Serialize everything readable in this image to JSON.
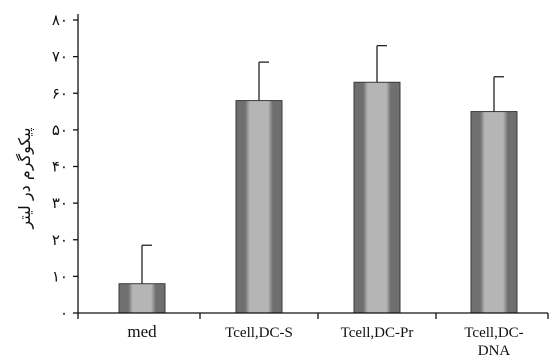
{
  "chart_data": {
    "type": "bar",
    "ylabel": "پیکوگرم در لیتر",
    "ylim": [
      0,
      80
    ],
    "y_ticks": [
      0,
      10,
      20,
      30,
      40,
      50,
      60,
      70,
      80
    ],
    "y_tick_labels": [
      "۰",
      "۱۰",
      "۲۰",
      "۳۰",
      "۴۰",
      "۵۰",
      "۶۰",
      "۷۰",
      "۸۰"
    ],
    "categories": [
      "med",
      "Tcell,DC-S",
      "Tcell,DC-Pr",
      "Tcell,DC-DNA"
    ],
    "category_lines": [
      [
        "med"
      ],
      [
        "Tcell,DC-S"
      ],
      [
        "Tcell,DC-Pr"
      ],
      [
        "Tcell,DC-",
        "DNA"
      ]
    ],
    "values": [
      8,
      58,
      63,
      55
    ],
    "error_plus": [
      10.5,
      10.5,
      10,
      9.5
    ],
    "grid": false,
    "legend": "none",
    "colors": {
      "bar_dark": "#6f6f6f",
      "bar_light": "#b5b5b5",
      "bar_outline": "#3a3a3a",
      "axis": "#111111"
    }
  }
}
